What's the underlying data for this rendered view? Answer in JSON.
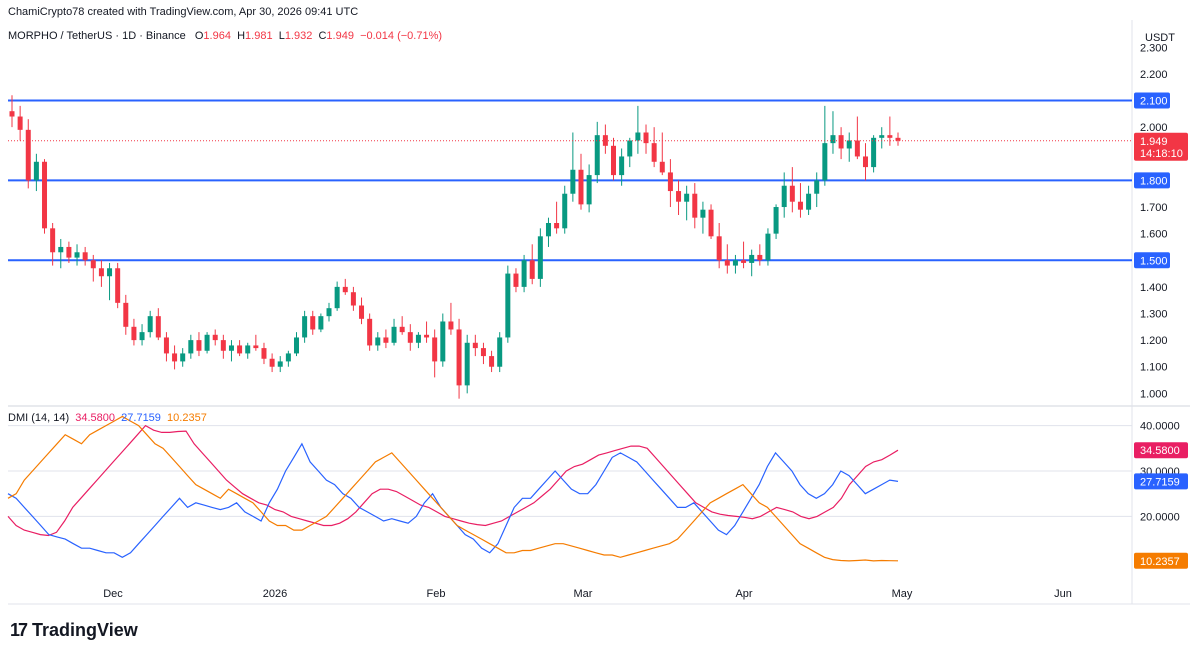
{
  "header": {
    "attribution": "ChamiCrypto78 created with TradingView.com, Apr 30, 2026 09:41 UTC"
  },
  "symbol_bar": {
    "pair": "MORPHO / TetherUS · 1D · Binance",
    "o_label": "O",
    "o": "1.964",
    "h_label": "H",
    "h": "1.981",
    "l_label": "L",
    "l": "1.932",
    "c_label": "C",
    "c": "1.949",
    "change": "−0.014 (−0.71%)"
  },
  "currency": "USDT",
  "logo_text": "TradingView",
  "colors": {
    "up": "#089981",
    "down": "#f23645",
    "level": "#2962ff",
    "adx": "#f7525f",
    "plus_di": "#e91e63",
    "minus_di": "#2962ff",
    "adx_line": "#f57c00"
  },
  "chart_data": [
    {
      "type": "candlestick",
      "title": "MORPHO / TetherUS · 1D · Binance",
      "y_ticks": [
        "2.300",
        "2.200",
        "2.100",
        "2.000",
        "1.949",
        "1.800",
        "1.700",
        "1.600",
        "1.500",
        "1.400",
        "1.300",
        "1.200",
        "1.100",
        "1.000"
      ],
      "x_ticks": [
        "Dec",
        "2026",
        "Feb",
        "Mar",
        "Apr",
        "May",
        "Jun"
      ],
      "ylim": [
        0.96,
        2.32
      ],
      "levels": [
        2.1,
        1.8,
        1.5
      ],
      "level_labels": [
        "2.100",
        "1.800",
        "1.500"
      ],
      "last_price": {
        "value": 1.949,
        "label": "1.949",
        "countdown": "14:18:10"
      },
      "candles": [
        [
          2.06,
          2.12,
          2.0,
          2.04
        ],
        [
          2.04,
          2.08,
          1.95,
          1.99
        ],
        [
          1.99,
          2.03,
          1.77,
          1.8
        ],
        [
          1.8,
          1.9,
          1.76,
          1.87
        ],
        [
          1.87,
          1.88,
          1.6,
          1.62
        ],
        [
          1.62,
          1.64,
          1.48,
          1.53
        ],
        [
          1.53,
          1.58,
          1.47,
          1.55
        ],
        [
          1.55,
          1.57,
          1.49,
          1.51
        ],
        [
          1.51,
          1.56,
          1.48,
          1.53
        ],
        [
          1.53,
          1.55,
          1.48,
          1.5
        ],
        [
          1.5,
          1.52,
          1.42,
          1.47
        ],
        [
          1.47,
          1.5,
          1.4,
          1.44
        ],
        [
          1.44,
          1.49,
          1.35,
          1.47
        ],
        [
          1.47,
          1.49,
          1.32,
          1.34
        ],
        [
          1.34,
          1.37,
          1.22,
          1.25
        ],
        [
          1.25,
          1.28,
          1.18,
          1.2
        ],
        [
          1.2,
          1.26,
          1.18,
          1.23
        ],
        [
          1.23,
          1.31,
          1.21,
          1.29
        ],
        [
          1.29,
          1.32,
          1.2,
          1.21
        ],
        [
          1.21,
          1.23,
          1.12,
          1.15
        ],
        [
          1.15,
          1.18,
          1.09,
          1.12
        ],
        [
          1.12,
          1.17,
          1.1,
          1.15
        ],
        [
          1.15,
          1.22,
          1.13,
          1.2
        ],
        [
          1.2,
          1.23,
          1.14,
          1.16
        ],
        [
          1.16,
          1.23,
          1.15,
          1.22
        ],
        [
          1.22,
          1.24,
          1.18,
          1.2
        ],
        [
          1.2,
          1.22,
          1.13,
          1.16
        ],
        [
          1.16,
          1.2,
          1.12,
          1.18
        ],
        [
          1.18,
          1.2,
          1.14,
          1.15
        ],
        [
          1.15,
          1.19,
          1.13,
          1.18
        ],
        [
          1.18,
          1.22,
          1.16,
          1.17
        ],
        [
          1.17,
          1.19,
          1.11,
          1.13
        ],
        [
          1.13,
          1.15,
          1.08,
          1.1
        ],
        [
          1.1,
          1.14,
          1.08,
          1.12
        ],
        [
          1.12,
          1.16,
          1.1,
          1.15
        ],
        [
          1.15,
          1.23,
          1.14,
          1.21
        ],
        [
          1.21,
          1.31,
          1.19,
          1.29
        ],
        [
          1.29,
          1.31,
          1.22,
          1.24
        ],
        [
          1.24,
          1.3,
          1.23,
          1.29
        ],
        [
          1.29,
          1.34,
          1.27,
          1.32
        ],
        [
          1.32,
          1.42,
          1.31,
          1.4
        ],
        [
          1.4,
          1.43,
          1.37,
          1.38
        ],
        [
          1.38,
          1.4,
          1.31,
          1.33
        ],
        [
          1.33,
          1.36,
          1.26,
          1.28
        ],
        [
          1.28,
          1.3,
          1.16,
          1.18
        ],
        [
          1.18,
          1.23,
          1.16,
          1.21
        ],
        [
          1.21,
          1.24,
          1.17,
          1.19
        ],
        [
          1.19,
          1.28,
          1.18,
          1.25
        ],
        [
          1.25,
          1.29,
          1.22,
          1.23
        ],
        [
          1.23,
          1.26,
          1.16,
          1.19
        ],
        [
          1.19,
          1.23,
          1.17,
          1.22
        ],
        [
          1.22,
          1.27,
          1.19,
          1.21
        ],
        [
          1.21,
          1.24,
          1.06,
          1.12
        ],
        [
          1.12,
          1.3,
          1.1,
          1.27
        ],
        [
          1.27,
          1.34,
          1.22,
          1.24
        ],
        [
          1.24,
          1.28,
          0.98,
          1.03
        ],
        [
          1.03,
          1.22,
          1.0,
          1.19
        ],
        [
          1.19,
          1.22,
          1.14,
          1.17
        ],
        [
          1.17,
          1.19,
          1.11,
          1.14
        ],
        [
          1.14,
          1.16,
          1.08,
          1.1
        ],
        [
          1.1,
          1.23,
          1.08,
          1.21
        ],
        [
          1.21,
          1.48,
          1.19,
          1.45
        ],
        [
          1.45,
          1.47,
          1.38,
          1.4
        ],
        [
          1.4,
          1.52,
          1.38,
          1.5
        ],
        [
          1.5,
          1.56,
          1.41,
          1.43
        ],
        [
          1.43,
          1.62,
          1.4,
          1.59
        ],
        [
          1.59,
          1.66,
          1.55,
          1.64
        ],
        [
          1.64,
          1.72,
          1.6,
          1.62
        ],
        [
          1.62,
          1.78,
          1.6,
          1.75
        ],
        [
          1.75,
          1.98,
          1.72,
          1.84
        ],
        [
          1.84,
          1.9,
          1.69,
          1.71
        ],
        [
          1.71,
          1.86,
          1.68,
          1.82
        ],
        [
          1.82,
          2.02,
          1.79,
          1.97
        ],
        [
          1.97,
          2.01,
          1.9,
          1.93
        ],
        [
          1.93,
          1.96,
          1.8,
          1.82
        ],
        [
          1.82,
          1.92,
          1.78,
          1.89
        ],
        [
          1.89,
          1.96,
          1.85,
          1.95
        ],
        [
          1.95,
          2.08,
          1.9,
          1.98
        ],
        [
          1.98,
          2.01,
          1.9,
          1.94
        ],
        [
          1.94,
          2.0,
          1.85,
          1.87
        ],
        [
          1.87,
          1.98,
          1.82,
          1.83
        ],
        [
          1.83,
          1.88,
          1.7,
          1.76
        ],
        [
          1.76,
          1.8,
          1.67,
          1.72
        ],
        [
          1.72,
          1.78,
          1.65,
          1.75
        ],
        [
          1.75,
          1.79,
          1.62,
          1.66
        ],
        [
          1.66,
          1.72,
          1.6,
          1.69
        ],
        [
          1.69,
          1.71,
          1.58,
          1.59
        ],
        [
          1.59,
          1.64,
          1.47,
          1.5
        ],
        [
          1.5,
          1.56,
          1.45,
          1.48
        ],
        [
          1.48,
          1.52,
          1.45,
          1.5
        ],
        [
          1.5,
          1.57,
          1.47,
          1.49
        ],
        [
          1.49,
          1.54,
          1.44,
          1.52
        ],
        [
          1.52,
          1.56,
          1.48,
          1.5
        ],
        [
          1.5,
          1.62,
          1.48,
          1.6
        ],
        [
          1.6,
          1.71,
          1.58,
          1.7
        ],
        [
          1.7,
          1.83,
          1.66,
          1.78
        ],
        [
          1.78,
          1.85,
          1.68,
          1.72
        ],
        [
          1.72,
          1.79,
          1.66,
          1.69
        ],
        [
          1.69,
          1.78,
          1.67,
          1.75
        ],
        [
          1.75,
          1.83,
          1.7,
          1.8
        ],
        [
          1.8,
          2.08,
          1.78,
          1.94
        ],
        [
          1.94,
          2.06,
          1.9,
          1.97
        ],
        [
          1.97,
          2.0,
          1.88,
          1.92
        ],
        [
          1.92,
          1.98,
          1.87,
          1.95
        ],
        [
          1.95,
          2.04,
          1.88,
          1.89
        ],
        [
          1.89,
          1.94,
          1.8,
          1.85
        ],
        [
          1.85,
          1.97,
          1.83,
          1.96
        ],
        [
          1.96,
          2.0,
          1.92,
          1.97
        ],
        [
          1.97,
          2.04,
          1.93,
          1.96
        ],
        [
          1.96,
          1.98,
          1.93,
          1.949
        ]
      ]
    },
    {
      "type": "line",
      "title": "DMI (14, 14)",
      "y_ticks": [
        "40.0000",
        "30.0000",
        "20.0000"
      ],
      "ylim": [
        6,
        43
      ],
      "series": [
        {
          "name": "34.5800",
          "color": "#e91e63",
          "values": [
            20,
            18,
            17,
            16.5,
            16,
            15.8,
            16.5,
            19,
            22,
            24,
            26,
            28,
            30,
            32,
            34,
            36,
            38,
            40,
            39,
            38.5,
            38.5,
            38.7,
            38.8,
            36,
            34,
            32,
            30,
            28,
            26.5,
            25,
            24,
            23,
            22.5,
            21.5,
            21,
            20,
            19.5,
            19,
            18.5,
            18,
            18,
            18.5,
            19.5,
            21,
            23,
            25,
            26,
            26,
            25.5,
            24.5,
            23.5,
            22.5,
            22,
            21,
            20,
            19.5,
            19,
            18.5,
            18.2,
            18,
            18.5,
            19,
            20,
            21,
            22,
            23,
            24.5,
            26,
            28,
            30,
            31,
            31.5,
            32.5,
            33.5,
            34,
            34.5,
            35,
            35.5,
            35.5,
            35,
            33,
            31,
            29,
            27,
            25,
            23,
            22,
            21,
            20.5,
            20.2,
            20,
            19.8,
            19.5,
            20,
            21,
            22,
            21.5,
            21,
            20,
            19.5,
            20,
            21,
            22,
            24,
            27,
            29,
            31,
            32,
            32.5,
            33.5,
            34.58
          ]
        },
        {
          "name": "27.7159",
          "color": "#2962ff",
          "values": [
            25,
            24,
            22,
            20,
            18,
            16,
            15.5,
            15,
            14,
            13,
            13,
            12.5,
            12,
            12,
            11,
            12,
            14,
            16,
            18,
            20,
            22,
            24,
            22,
            23,
            22.5,
            22,
            21.5,
            22,
            23,
            21,
            20,
            19,
            23,
            26,
            30,
            33,
            36,
            32,
            30,
            28,
            27,
            25,
            24,
            22,
            21,
            20,
            19,
            19.5,
            19,
            18.5,
            20,
            23,
            25,
            22,
            20,
            18,
            16,
            15,
            13,
            12,
            14,
            18,
            22,
            24,
            24,
            26,
            28,
            30,
            28,
            26,
            25,
            25,
            27,
            30,
            33,
            34,
            33,
            32,
            30,
            28,
            26,
            24,
            22,
            22,
            23,
            21,
            19,
            17,
            16,
            18,
            21,
            24,
            27,
            31,
            34,
            32,
            30,
            27,
            25,
            24,
            25,
            27,
            30,
            29,
            27,
            25,
            26,
            27,
            28,
            27.7159
          ]
        },
        {
          "name": "10.2357",
          "color": "#f57c00",
          "values": [
            24,
            25,
            28,
            30,
            32,
            34,
            36,
            38,
            37,
            36,
            38,
            39,
            40,
            41,
            42,
            41,
            40,
            38,
            36,
            35,
            33,
            31,
            29,
            27,
            26,
            25,
            24,
            26,
            25,
            24,
            23,
            21,
            19,
            18,
            18,
            17,
            17,
            18,
            19,
            20,
            22,
            24,
            26,
            28,
            30,
            32,
            33,
            34,
            32,
            30,
            28,
            26,
            24,
            22,
            20,
            18,
            17,
            16,
            15,
            14,
            13,
            12,
            12,
            12.5,
            12.5,
            13,
            13.5,
            14,
            14,
            13.5,
            13,
            12.5,
            12,
            11.5,
            11.5,
            11,
            11.5,
            12,
            12.5,
            13,
            13.5,
            14,
            15,
            17,
            19,
            21,
            23,
            24,
            25,
            26,
            27,
            25,
            23,
            22,
            20,
            18,
            16,
            14,
            13,
            12,
            11,
            10.5,
            10.3,
            10.2,
            10.3,
            10.4,
            10.2,
            10.3,
            10.25,
            10.2357
          ]
        }
      ]
    }
  ]
}
